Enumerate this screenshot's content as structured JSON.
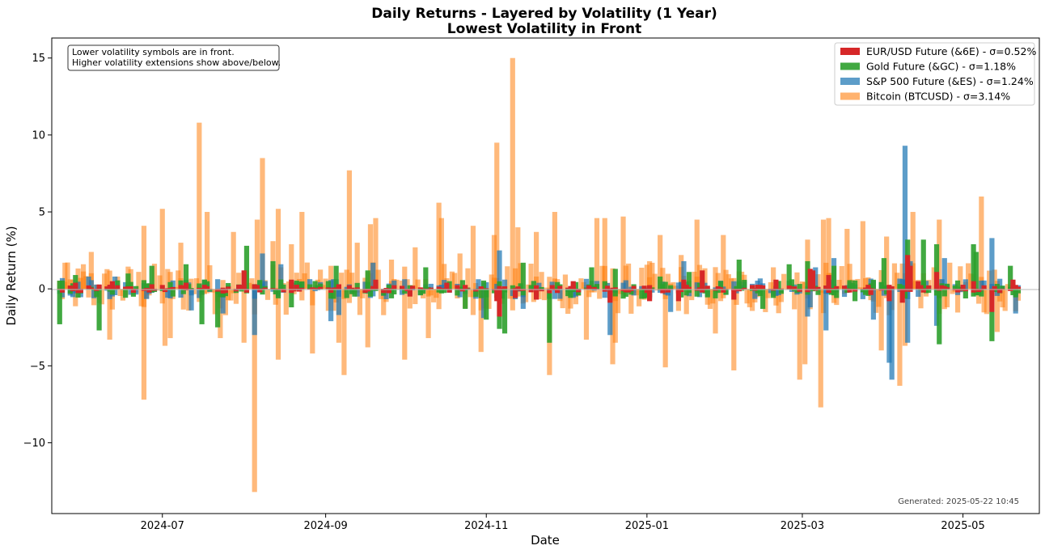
{
  "chart_data": {
    "type": "bar",
    "title": "Daily Returns - Layered by Volatility (1 Year)",
    "subtitle": "Lowest Volatility in Front",
    "xlabel": "Date",
    "ylabel": "Daily Return (%)",
    "ylim": [
      -14.6,
      16.3
    ],
    "y_ticks": [
      -10,
      -5,
      0,
      5,
      10,
      15
    ],
    "y_tick_labels": [
      "−10",
      "−5",
      "0",
      "5",
      "10",
      "15"
    ],
    "x_ticks": [
      "2024-07",
      "2024-09",
      "2024-11",
      "2025-01",
      "2025-03",
      "2025-05"
    ],
    "x_range": [
      "2024-05-20",
      "2025-05-30"
    ],
    "data_start": "2024-05-23",
    "data_end": "2025-05-22",
    "annotation": "Lower volatility symbols are in front.\nHigher volatility extensions show above/below.",
    "generated": "Generated: 2025-05-22 10:45",
    "legend_position": "top-right",
    "grid": false,
    "series": [
      {
        "name": "EUR/USD Future (&6E) - σ=0.52%",
        "color": "#d62728",
        "opacity": 1.0,
        "sigma": 0.52,
        "draw_order": 4,
        "points": [
          [
            "2024-05-29",
            0.4
          ],
          [
            "2024-06-12",
            0.5
          ],
          [
            "2024-06-27",
            0.3
          ],
          [
            "2024-07-10",
            0.4
          ],
          [
            "2024-07-24",
            -0.3
          ],
          [
            "2024-08-01",
            1.2
          ],
          [
            "2024-08-05",
            0.3
          ],
          [
            "2024-08-19",
            0.6
          ],
          [
            "2024-09-06",
            0.3
          ],
          [
            "2024-09-20",
            0.6
          ],
          [
            "2024-10-03",
            -0.5
          ],
          [
            "2024-10-17",
            0.4
          ],
          [
            "2024-11-05",
            -0.8
          ],
          [
            "2024-11-06",
            -1.8
          ],
          [
            "2024-11-12",
            -0.6
          ],
          [
            "2024-11-20",
            -0.7
          ],
          [
            "2024-12-04",
            0.5
          ],
          [
            "2024-12-18",
            -0.9
          ],
          [
            "2025-01-02",
            -0.8
          ],
          [
            "2025-01-13",
            -0.8
          ],
          [
            "2025-01-15",
            0.6
          ],
          [
            "2025-01-22",
            1.2
          ],
          [
            "2025-02-03",
            -0.7
          ],
          [
            "2025-02-19",
            0.6
          ],
          [
            "2025-03-04",
            1.3
          ],
          [
            "2025-03-05",
            1.2
          ],
          [
            "2025-03-11",
            0.9
          ],
          [
            "2025-03-27",
            -0.4
          ],
          [
            "2025-04-03",
            -0.8
          ],
          [
            "2025-04-08",
            -0.9
          ],
          [
            "2025-04-10",
            2.2
          ],
          [
            "2025-04-11",
            1.5
          ],
          [
            "2025-04-14",
            0.5
          ],
          [
            "2025-04-21",
            1.1
          ],
          [
            "2025-05-05",
            0.5
          ],
          [
            "2025-05-12",
            -1.5
          ],
          [
            "2025-05-20",
            0.6
          ]
        ]
      },
      {
        "name": "Gold Future (&GC) - σ=1.18%",
        "color": "#2ca02c",
        "opacity": 0.9,
        "sigma": 1.18,
        "draw_order": 3,
        "points": [
          [
            "2024-05-23",
            -2.3
          ],
          [
            "2024-05-29",
            0.9
          ],
          [
            "2024-06-07",
            -2.7
          ],
          [
            "2024-06-18",
            1.0
          ],
          [
            "2024-06-27",
            1.5
          ],
          [
            "2024-07-10",
            1.6
          ],
          [
            "2024-07-16",
            -2.3
          ],
          [
            "2024-07-22",
            -2.5
          ],
          [
            "2024-08-02",
            2.8
          ],
          [
            "2024-08-12",
            1.8
          ],
          [
            "2024-08-19",
            -1.2
          ],
          [
            "2024-09-05",
            1.5
          ],
          [
            "2024-09-17",
            1.2
          ],
          [
            "2024-10-09",
            1.4
          ],
          [
            "2024-10-24",
            -1.3
          ],
          [
            "2024-11-01",
            -2.0
          ],
          [
            "2024-11-06",
            -2.6
          ],
          [
            "2024-11-08",
            -2.9
          ],
          [
            "2024-11-15",
            1.7
          ],
          [
            "2024-11-25",
            -3.5
          ],
          [
            "2024-12-11",
            1.4
          ],
          [
            "2024-12-20",
            1.3
          ],
          [
            "2025-01-06",
            0.8
          ],
          [
            "2025-01-17",
            1.1
          ],
          [
            "2025-02-05",
            1.9
          ],
          [
            "2025-02-14",
            -1.3
          ],
          [
            "2025-02-24",
            1.6
          ],
          [
            "2025-03-03",
            1.8
          ],
          [
            "2025-03-13",
            1.5
          ],
          [
            "2025-03-21",
            -0.8
          ],
          [
            "2025-04-01",
            2.0
          ],
          [
            "2025-04-10",
            3.2
          ],
          [
            "2025-04-16",
            3.2
          ],
          [
            "2025-04-21",
            2.9
          ],
          [
            "2025-04-22",
            -3.6
          ],
          [
            "2025-05-05",
            2.9
          ],
          [
            "2025-05-06",
            2.4
          ],
          [
            "2025-05-12",
            -3.4
          ],
          [
            "2025-05-19",
            1.5
          ]
        ]
      },
      {
        "name": "S&P 500 Future (&ES) - σ=1.24%",
        "color": "#1f77b4",
        "opacity": 0.72,
        "sigma": 1.24,
        "draw_order": 2,
        "points": [
          [
            "2024-05-24",
            0.7
          ],
          [
            "2024-06-03",
            0.8
          ],
          [
            "2024-06-13",
            0.8
          ],
          [
            "2024-07-12",
            -1.4
          ],
          [
            "2024-07-24",
            -1.6
          ],
          [
            "2024-08-05",
            -3.0
          ],
          [
            "2024-08-08",
            2.3
          ],
          [
            "2024-08-15",
            1.6
          ],
          [
            "2024-09-03",
            -2.1
          ],
          [
            "2024-09-06",
            -1.7
          ],
          [
            "2024-09-19",
            1.7
          ],
          [
            "2024-10-31",
            -1.9
          ],
          [
            "2024-11-06",
            2.5
          ],
          [
            "2024-11-15",
            -1.3
          ],
          [
            "2024-12-18",
            -3.0
          ],
          [
            "2025-01-10",
            -1.5
          ],
          [
            "2025-01-15",
            1.8
          ],
          [
            "2025-03-03",
            -1.8
          ],
          [
            "2025-03-04",
            -1.2
          ],
          [
            "2025-03-06",
            1.4
          ],
          [
            "2025-03-10",
            -2.7
          ],
          [
            "2025-03-13",
            2.0
          ],
          [
            "2025-03-28",
            -2.0
          ],
          [
            "2025-04-03",
            -4.8
          ],
          [
            "2025-04-04",
            -5.9
          ],
          [
            "2025-04-07",
            -0.2
          ],
          [
            "2025-04-09",
            9.3
          ],
          [
            "2025-04-10",
            -3.5
          ],
          [
            "2025-04-11",
            1.8
          ],
          [
            "2025-04-21",
            -2.4
          ],
          [
            "2025-04-24",
            2.0
          ],
          [
            "2025-05-12",
            3.3
          ],
          [
            "2025-05-21",
            -1.6
          ]
        ]
      },
      {
        "name": "Bitcoin (BTCUSD) - σ=3.14%",
        "color": "#ff7f0e",
        "opacity": 0.55,
        "sigma": 3.14,
        "draw_order": 1,
        "points": [
          [
            "2024-05-25",
            1.7
          ],
          [
            "2024-06-01",
            1.6
          ],
          [
            "2024-06-04",
            2.4
          ],
          [
            "2024-06-11",
            -3.3
          ],
          [
            "2024-06-24",
            -7.2
          ],
          [
            "2024-06-24",
            4.1
          ],
          [
            "2024-07-01",
            5.2
          ],
          [
            "2024-07-02",
            -3.7
          ],
          [
            "2024-07-04",
            -3.2
          ],
          [
            "2024-07-08",
            3.0
          ],
          [
            "2024-07-15",
            10.8
          ],
          [
            "2024-07-18",
            5.0
          ],
          [
            "2024-07-23",
            -3.2
          ],
          [
            "2024-07-28",
            3.7
          ],
          [
            "2024-08-01",
            -3.5
          ],
          [
            "2024-08-05",
            -13.2
          ],
          [
            "2024-08-06",
            4.5
          ],
          [
            "2024-08-08",
            8.5
          ],
          [
            "2024-08-12",
            3.1
          ],
          [
            "2024-08-14",
            -4.6
          ],
          [
            "2024-08-14",
            5.2
          ],
          [
            "2024-08-19",
            2.9
          ],
          [
            "2024-08-23",
            5.0
          ],
          [
            "2024-08-27",
            -4.2
          ],
          [
            "2024-09-06",
            -3.5
          ],
          [
            "2024-09-08",
            -5.6
          ],
          [
            "2024-09-10",
            7.7
          ],
          [
            "2024-09-13",
            3.0
          ],
          [
            "2024-09-17",
            -3.8
          ],
          [
            "2024-09-18",
            4.2
          ],
          [
            "2024-09-20",
            4.6
          ],
          [
            "2024-09-26",
            1.9
          ],
          [
            "2024-10-01",
            -4.6
          ],
          [
            "2024-10-05",
            2.7
          ],
          [
            "2024-10-10",
            -3.2
          ],
          [
            "2024-10-14",
            5.6
          ],
          [
            "2024-10-15",
            4.6
          ],
          [
            "2024-10-22",
            2.3
          ],
          [
            "2024-10-27",
            4.1
          ],
          [
            "2024-10-30",
            -4.1
          ],
          [
            "2024-11-04",
            3.5
          ],
          [
            "2024-11-05",
            9.5
          ],
          [
            "2024-11-11",
            15.0
          ],
          [
            "2024-11-13",
            4.0
          ],
          [
            "2024-11-20",
            3.7
          ],
          [
            "2024-11-25",
            -5.6
          ],
          [
            "2024-11-27",
            5.0
          ],
          [
            "2024-12-05",
            -1.0
          ],
          [
            "2024-12-09",
            -3.3
          ],
          [
            "2024-12-13",
            4.6
          ],
          [
            "2024-12-16",
            4.6
          ],
          [
            "2024-12-19",
            -4.9
          ],
          [
            "2024-12-20",
            -3.5
          ],
          [
            "2024-12-23",
            4.7
          ],
          [
            "2025-01-02",
            1.8
          ],
          [
            "2025-01-06",
            3.5
          ],
          [
            "2025-01-08",
            -5.1
          ],
          [
            "2025-01-14",
            2.2
          ],
          [
            "2025-01-20",
            4.5
          ],
          [
            "2025-01-27",
            -2.9
          ],
          [
            "2025-01-30",
            3.5
          ],
          [
            "2025-02-03",
            -5.3
          ],
          [
            "2025-02-28",
            -5.9
          ],
          [
            "2025-03-02",
            -4.9
          ],
          [
            "2025-03-03",
            3.2
          ],
          [
            "2025-03-08",
            -7.7
          ],
          [
            "2025-03-09",
            4.5
          ],
          [
            "2025-03-11",
            4.6
          ],
          [
            "2025-03-18",
            3.9
          ],
          [
            "2025-03-24",
            4.4
          ],
          [
            "2025-03-31",
            -4.0
          ],
          [
            "2025-04-02",
            3.4
          ],
          [
            "2025-04-07",
            -6.3
          ],
          [
            "2025-04-09",
            -3.7
          ],
          [
            "2025-04-12",
            5.0
          ],
          [
            "2025-04-22",
            4.5
          ],
          [
            "2025-05-08",
            6.0
          ],
          [
            "2025-05-14",
            -2.8
          ]
        ]
      }
    ]
  }
}
